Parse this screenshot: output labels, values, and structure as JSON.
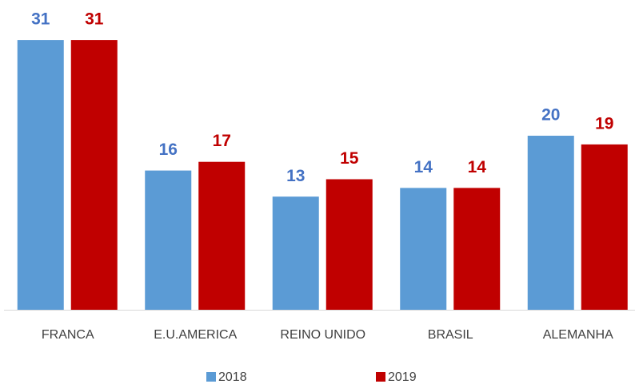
{
  "chart_data": {
    "type": "bar",
    "categories": [
      "FRANCA",
      "E.U.AMERICA",
      "REINO UNIDO",
      "BRASIL",
      "ALEMANHA"
    ],
    "series": [
      {
        "name": "2018",
        "color": "#5b9bd5",
        "label_color": "#4472c4",
        "values": [
          31,
          16,
          13,
          14,
          20
        ]
      },
      {
        "name": "2019",
        "color": "#c00000",
        "label_color": "#c00000",
        "values": [
          31,
          17,
          15,
          14,
          19
        ]
      }
    ],
    "ylim": [
      0,
      35
    ],
    "grid": false,
    "legend": "bottom"
  }
}
